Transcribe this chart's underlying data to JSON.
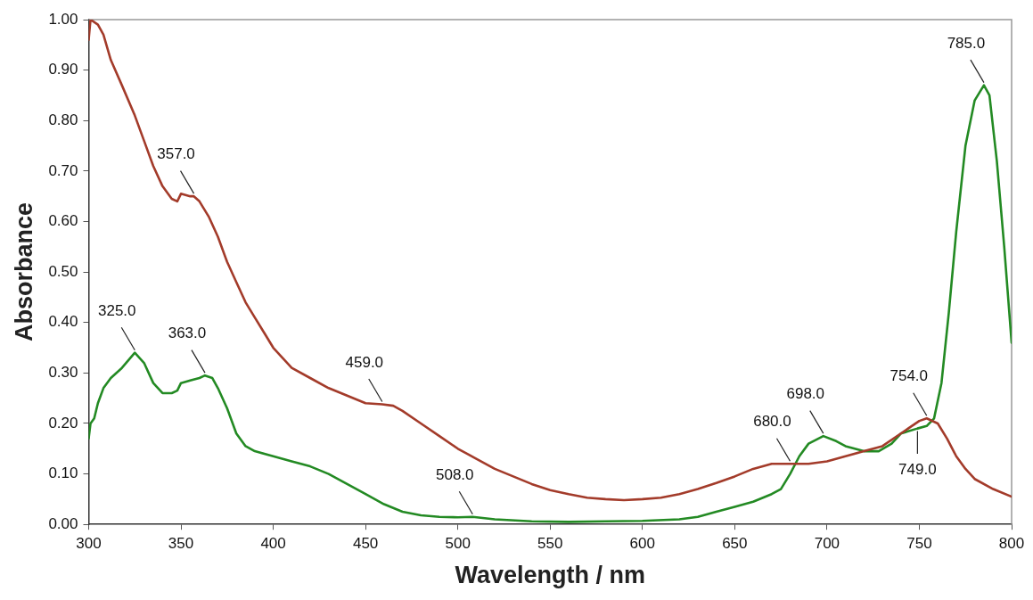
{
  "chart_data": {
    "type": "line",
    "xlabel": "Wavelength / nm",
    "ylabel": "Absorbance",
    "xlim": [
      300,
      800
    ],
    "xticks": [
      300,
      350,
      400,
      450,
      500,
      550,
      600,
      650,
      700,
      750,
      800
    ],
    "ylim": [
      0,
      1
    ],
    "yticks": [
      {
        "value": 0,
        "label": "0.00"
      },
      {
        "value": 0.1,
        "label": "0.10"
      },
      {
        "value": 0.2,
        "label": "0.20"
      },
      {
        "value": 0.3,
        "label": "0.30"
      },
      {
        "value": 0.4,
        "label": "0.40"
      },
      {
        "value": 0.5,
        "label": "0.50"
      },
      {
        "value": 0.6,
        "label": "0.60"
      },
      {
        "value": 0.7,
        "label": "0.70"
      },
      {
        "value": 0.8,
        "label": "0.80"
      },
      {
        "value": 0.9,
        "label": "0.90"
      },
      {
        "value": 1,
        "label": "1.00"
      }
    ],
    "grid": false,
    "legend": false,
    "marker": "none",
    "line_style": "solid",
    "series": [
      {
        "color": "#a33b2a",
        "x": [
          300,
          301,
          305,
          308,
          312,
          318,
          325,
          330,
          335,
          340,
          345,
          348,
          350,
          355,
          357,
          360,
          365,
          370,
          375,
          380,
          385,
          390,
          395,
          400,
          405,
          410,
          420,
          430,
          440,
          450,
          459,
          465,
          470,
          480,
          490,
          500,
          510,
          520,
          530,
          540,
          550,
          560,
          570,
          580,
          590,
          600,
          610,
          620,
          630,
          640,
          650,
          660,
          670,
          680,
          690,
          700,
          710,
          720,
          730,
          740,
          750,
          754,
          760,
          765,
          770,
          775,
          780,
          790,
          800
        ],
        "values": [
          0.96,
          1.0,
          0.99,
          0.97,
          0.92,
          0.87,
          0.81,
          0.76,
          0.71,
          0.67,
          0.645,
          0.64,
          0.655,
          0.65,
          0.65,
          0.64,
          0.61,
          0.57,
          0.52,
          0.48,
          0.44,
          0.41,
          0.38,
          0.35,
          0.33,
          0.31,
          0.29,
          0.27,
          0.255,
          0.24,
          0.238,
          0.235,
          0.225,
          0.2,
          0.175,
          0.15,
          0.13,
          0.11,
          0.095,
          0.08,
          0.068,
          0.06,
          0.053,
          0.05,
          0.048,
          0.05,
          0.053,
          0.06,
          0.07,
          0.082,
          0.095,
          0.11,
          0.12,
          0.12,
          0.12,
          0.125,
          0.135,
          0.145,
          0.155,
          0.18,
          0.205,
          0.21,
          0.2,
          0.17,
          0.135,
          0.11,
          0.09,
          0.07,
          0.055
        ]
      },
      {
        "color": "#238a23",
        "x": [
          300,
          301,
          303,
          305,
          308,
          312,
          318,
          325,
          330,
          335,
          340,
          345,
          348,
          350,
          355,
          360,
          363,
          367,
          370,
          375,
          380,
          385,
          390,
          400,
          410,
          420,
          430,
          440,
          450,
          460,
          470,
          480,
          490,
          500,
          508,
          520,
          540,
          560,
          580,
          600,
          620,
          630,
          640,
          650,
          660,
          670,
          675,
          680,
          685,
          690,
          698,
          705,
          710,
          720,
          728,
          735,
          740,
          749,
          754,
          758,
          762,
          766,
          770,
          775,
          780,
          785,
          788,
          792,
          796,
          800
        ],
        "values": [
          0.17,
          0.2,
          0.21,
          0.24,
          0.27,
          0.29,
          0.31,
          0.34,
          0.32,
          0.28,
          0.26,
          0.26,
          0.265,
          0.28,
          0.285,
          0.29,
          0.295,
          0.29,
          0.27,
          0.23,
          0.18,
          0.155,
          0.145,
          0.135,
          0.125,
          0.115,
          0.1,
          0.08,
          0.06,
          0.04,
          0.025,
          0.018,
          0.015,
          0.014,
          0.015,
          0.01,
          0.006,
          0.005,
          0.006,
          0.007,
          0.01,
          0.015,
          0.025,
          0.035,
          0.045,
          0.06,
          0.07,
          0.1,
          0.135,
          0.16,
          0.175,
          0.165,
          0.155,
          0.145,
          0.145,
          0.16,
          0.18,
          0.19,
          0.195,
          0.21,
          0.28,
          0.42,
          0.58,
          0.75,
          0.84,
          0.87,
          0.85,
          0.72,
          0.55,
          0.36
        ]
      }
    ],
    "annotations": [
      {
        "text": "325.0",
        "x": 325,
        "y": 0.34
      },
      {
        "text": "357.0",
        "x": 357,
        "y": 0.65
      },
      {
        "text": "363.0",
        "x": 363,
        "y": 0.295
      },
      {
        "text": "459.0",
        "x": 459,
        "y": 0.238
      },
      {
        "text": "508.0",
        "x": 508,
        "y": 0.015
      },
      {
        "text": "680.0",
        "x": 680,
        "y": 0.12
      },
      {
        "text": "698.0",
        "x": 698,
        "y": 0.175
      },
      {
        "text": "749.0",
        "x": 749,
        "y": 0.19
      },
      {
        "text": "754.0",
        "x": 754,
        "y": 0.21
      },
      {
        "text": "785.0",
        "x": 785,
        "y": 0.87
      }
    ]
  }
}
